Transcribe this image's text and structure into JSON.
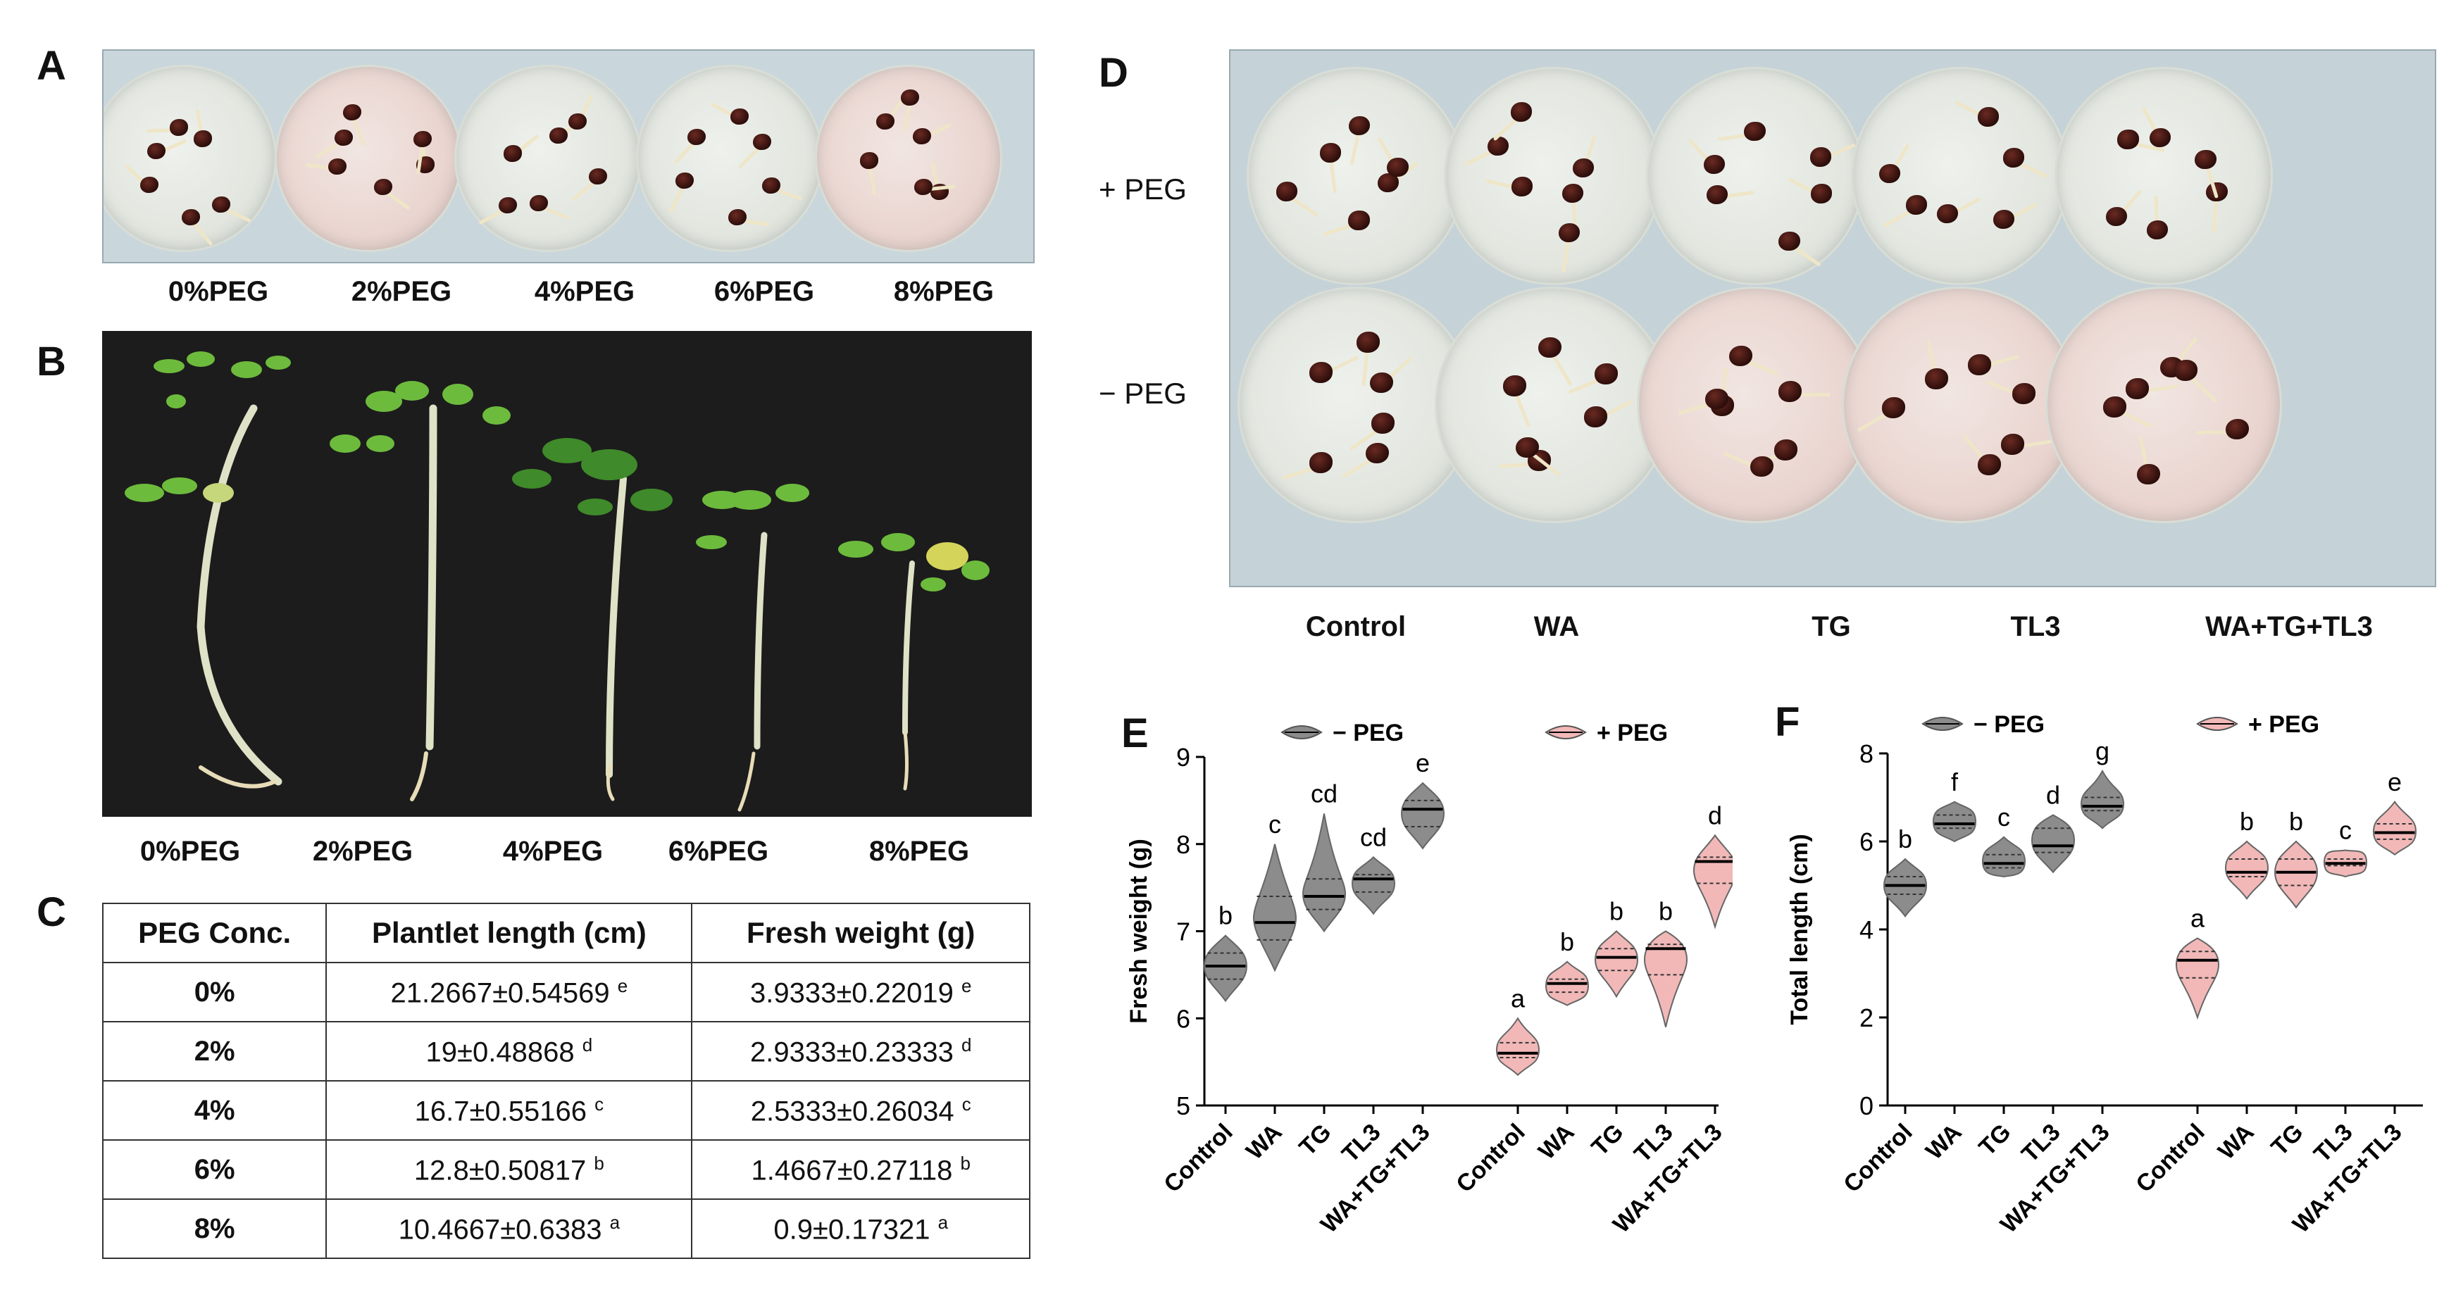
{
  "panel_labels": {
    "A": "A",
    "B": "B",
    "C": "C",
    "D": "D",
    "E": "E",
    "F": "F"
  },
  "panelA": {
    "captions": [
      "0%PEG",
      "2%PEG",
      "4%PEG",
      "6%PEG",
      "8%PEG"
    ]
  },
  "panelB": {
    "captions": [
      "0%PEG",
      "2%PEG",
      "4%PEG",
      "6%PEG",
      "8%PEG"
    ]
  },
  "panelC": {
    "headers": [
      "PEG Conc.",
      "Plantlet length (cm)",
      "Fresh weight (g)"
    ],
    "rows": [
      {
        "conc": "0%",
        "length": "21.2667±0.54569",
        "length_sup": "e",
        "weight": "3.9333±0.22019",
        "weight_sup": "e"
      },
      {
        "conc": "2%",
        "length": "19±0.48868",
        "length_sup": "d",
        "weight": "2.9333±0.23333",
        "weight_sup": "d"
      },
      {
        "conc": "4%",
        "length": "16.7±0.55166",
        "length_sup": "c",
        "weight": "2.5333±0.26034",
        "weight_sup": "c"
      },
      {
        "conc": "6%",
        "length": "12.8±0.50817",
        "length_sup": "b",
        "weight": "1.4667±0.27118",
        "weight_sup": "b"
      },
      {
        "conc": "8%",
        "length": "10.4667±0.6383",
        "length_sup": "a",
        "weight": "0.9±0.17321",
        "weight_sup": "a"
      }
    ]
  },
  "panelD": {
    "row_labels": [
      "+ PEG",
      "− PEG"
    ],
    "captions": [
      "Control",
      "WA",
      "TG",
      "TL3",
      "WA+TG+TL3"
    ]
  },
  "chart_data": [
    {
      "type": "violin",
      "panel": "E",
      "ylabel": "Fresh weight (g)",
      "ylim": [
        5,
        9
      ],
      "yticks": [
        5,
        6,
        7,
        8,
        9
      ],
      "legend": [
        {
          "name": "− PEG",
          "color": "#8c8c8c"
        },
        {
          "name": "+ PEG",
          "color": "#f2b8b8"
        }
      ],
      "categories": [
        "Control",
        "WA",
        "TG",
        "TL3",
        "WA+TG+TL3",
        "Control",
        "WA",
        "TG",
        "TL3",
        "WA+TG+TL3"
      ],
      "groups": [
        {
          "group": "− PEG",
          "category": "Control",
          "median": 6.6,
          "q1": 6.45,
          "q3": 6.75,
          "min": 6.2,
          "max": 6.95,
          "letter": "b"
        },
        {
          "group": "− PEG",
          "category": "WA",
          "median": 7.1,
          "q1": 6.9,
          "q3": 7.4,
          "min": 6.55,
          "max": 8.0,
          "letter": "c"
        },
        {
          "group": "− PEG",
          "category": "TG",
          "median": 7.4,
          "q1": 7.25,
          "q3": 7.6,
          "min": 7.0,
          "max": 8.35,
          "letter": "cd"
        },
        {
          "group": "− PEG",
          "category": "TL3",
          "median": 7.6,
          "q1": 7.45,
          "q3": 7.65,
          "min": 7.2,
          "max": 7.85,
          "letter": "cd"
        },
        {
          "group": "− PEG",
          "category": "WA+TG+TL3",
          "median": 8.4,
          "q1": 8.2,
          "q3": 8.5,
          "min": 7.95,
          "max": 8.7,
          "letter": "e"
        },
        {
          "group": "+ PEG",
          "category": "Control",
          "median": 5.6,
          "q1": 5.55,
          "q3": 5.72,
          "min": 5.35,
          "max": 6.0,
          "letter": "a"
        },
        {
          "group": "+ PEG",
          "category": "WA",
          "median": 6.4,
          "q1": 6.3,
          "q3": 6.45,
          "min": 6.15,
          "max": 6.65,
          "letter": "b"
        },
        {
          "group": "+ PEG",
          "category": "TG",
          "median": 6.7,
          "q1": 6.55,
          "q3": 6.8,
          "min": 6.25,
          "max": 7.0,
          "letter": "b"
        },
        {
          "group": "+ PEG",
          "category": "TL3",
          "median": 6.8,
          "q1": 6.5,
          "q3": 6.85,
          "min": 5.9,
          "max": 7.0,
          "letter": "b"
        },
        {
          "group": "+ PEG",
          "category": "WA+TG+TL3",
          "median": 7.8,
          "q1": 7.55,
          "q3": 7.85,
          "min": 7.05,
          "max": 8.1,
          "letter": "d"
        }
      ]
    },
    {
      "type": "violin",
      "panel": "F",
      "ylabel": "Total length (cm)",
      "ylim": [
        0,
        8
      ],
      "yticks": [
        0,
        2,
        4,
        6,
        8
      ],
      "legend": [
        {
          "name": "− PEG",
          "color": "#8c8c8c"
        },
        {
          "name": "+ PEG",
          "color": "#f2b8b8"
        }
      ],
      "categories": [
        "Control",
        "WA",
        "TG",
        "TL3",
        "WA+TG+TL3",
        "Control",
        "WA",
        "TG",
        "TL3",
        "WA+TG+TL3"
      ],
      "groups": [
        {
          "group": "− PEG",
          "category": "Control",
          "median": 5.0,
          "q1": 4.8,
          "q3": 5.2,
          "min": 4.3,
          "max": 5.6,
          "letter": "b"
        },
        {
          "group": "− PEG",
          "category": "WA",
          "median": 6.4,
          "q1": 6.3,
          "q3": 6.6,
          "min": 6.0,
          "max": 6.9,
          "letter": "f"
        },
        {
          "group": "− PEG",
          "category": "TG",
          "median": 5.5,
          "q1": 5.4,
          "q3": 5.7,
          "min": 5.2,
          "max": 6.1,
          "letter": "c"
        },
        {
          "group": "− PEG",
          "category": "TL3",
          "median": 5.9,
          "q1": 5.75,
          "q3": 6.3,
          "min": 5.3,
          "max": 6.6,
          "letter": "d"
        },
        {
          "group": "− PEG",
          "category": "WA+TG+TL3",
          "median": 6.8,
          "q1": 6.7,
          "q3": 7.0,
          "min": 6.3,
          "max": 7.6,
          "letter": "g"
        },
        {
          "group": "+ PEG",
          "category": "Control",
          "median": 3.3,
          "q1": 2.9,
          "q3": 3.5,
          "min": 2.0,
          "max": 3.8,
          "letter": "a"
        },
        {
          "group": "+ PEG",
          "category": "WA",
          "median": 5.3,
          "q1": 5.2,
          "q3": 5.6,
          "min": 4.7,
          "max": 6.0,
          "letter": "b"
        },
        {
          "group": "+ PEG",
          "category": "TG",
          "median": 5.3,
          "q1": 5.0,
          "q3": 5.6,
          "min": 4.5,
          "max": 6.0,
          "letter": "b"
        },
        {
          "group": "+ PEG",
          "category": "TL3",
          "median": 5.5,
          "q1": 5.45,
          "q3": 5.6,
          "min": 5.2,
          "max": 5.8,
          "letter": "c"
        },
        {
          "group": "+ PEG",
          "category": "WA+TG+TL3",
          "median": 6.2,
          "q1": 6.05,
          "q3": 6.4,
          "min": 5.7,
          "max": 6.9,
          "letter": "e"
        }
      ]
    }
  ]
}
